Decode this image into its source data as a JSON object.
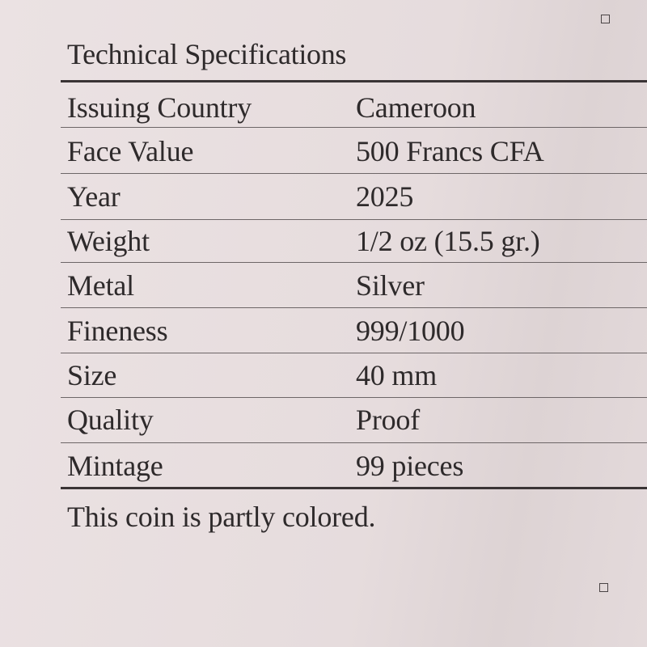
{
  "title": "Technical Specifications",
  "rows": [
    {
      "label": "Issuing Country",
      "value": "Cameroon"
    },
    {
      "label": "Face Value",
      "value": "500 Francs CFA"
    },
    {
      "label": "Year",
      "value": "2025"
    },
    {
      "label": "Weight",
      "value": "1/2 oz (15.5 gr.)"
    },
    {
      "label": "Metal",
      "value": "Silver"
    },
    {
      "label": "Fineness",
      "value": "999/1000"
    },
    {
      "label": "Size",
      "value": "40 mm"
    },
    {
      "label": "Quality",
      "value": "Proof"
    },
    {
      "label": "Mintage",
      "value": "99 pieces"
    }
  ],
  "note": "This coin is partly colored."
}
